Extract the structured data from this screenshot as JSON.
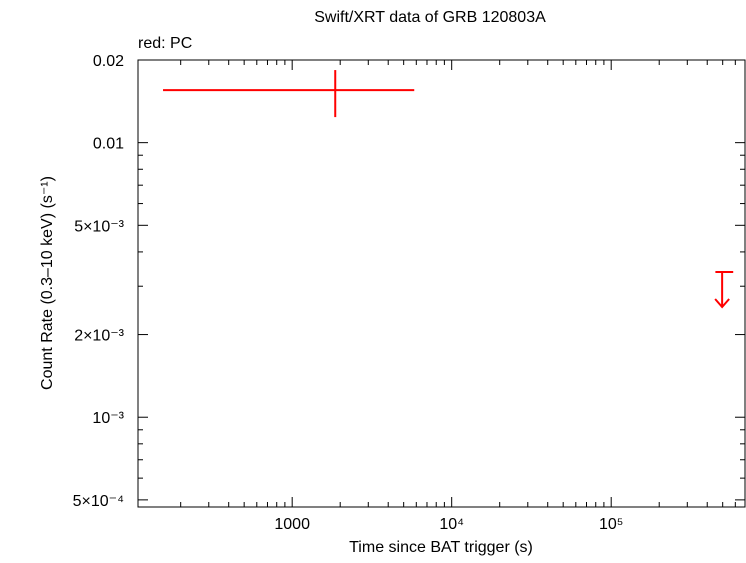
{
  "chart_data": {
    "type": "scatter",
    "title": "Swift/XRT data of GRB 120803A",
    "legend_text": "red: PC",
    "x_label": "Time since BAT trigger (s)",
    "y_label": "Count Rate (0.3–10 keV) (s⁻¹)",
    "xlog": true,
    "ylog": true,
    "color": "#ff0000",
    "xlim": [
      108,
      690000
    ],
    "ylim": [
      0.000471,
      0.02
    ],
    "xticks": [
      1000,
      {
        "value": 10000,
        "label": "10⁴"
      },
      {
        "value": 100000,
        "label": "10⁵"
      }
    ],
    "yticks": [
      0.02,
      0.01,
      {
        "value": 0.005,
        "label": "5×10⁻³"
      },
      {
        "value": 0.002,
        "label": "2×10⁻³"
      },
      {
        "value": 0.001,
        "label": "10⁻³"
      },
      {
        "value": 0.0005,
        "label": "5×10⁻⁴"
      }
    ],
    "x_minor_ticks": [
      200,
      300,
      400,
      500,
      600,
      700,
      800,
      900,
      2000,
      3000,
      4000,
      5000,
      6000,
      7000,
      8000,
      9000,
      20000,
      30000,
      40000,
      50000,
      60000,
      70000,
      80000,
      90000,
      200000,
      300000,
      400000,
      500000,
      600000
    ],
    "y_minor_ticks": [
      0.0006,
      0.0007,
      0.0008,
      0.0009,
      0.003,
      0.004,
      0.006,
      0.007,
      0.008,
      0.009
    ],
    "points": {
      "x": [
        1862
      ],
      "x_lo": [
        155
      ],
      "x_hi": [
        5825
      ],
      "y": [
        0.01554
      ],
      "y_lo": [
        0.01239
      ],
      "y_hi": [
        0.01838
      ]
    },
    "upper_limits": {
      "x": [
        496000
      ],
      "x_lo": [
        450000
      ],
      "x_hi": [
        582000
      ],
      "y": [
        0.00338
      ]
    }
  }
}
